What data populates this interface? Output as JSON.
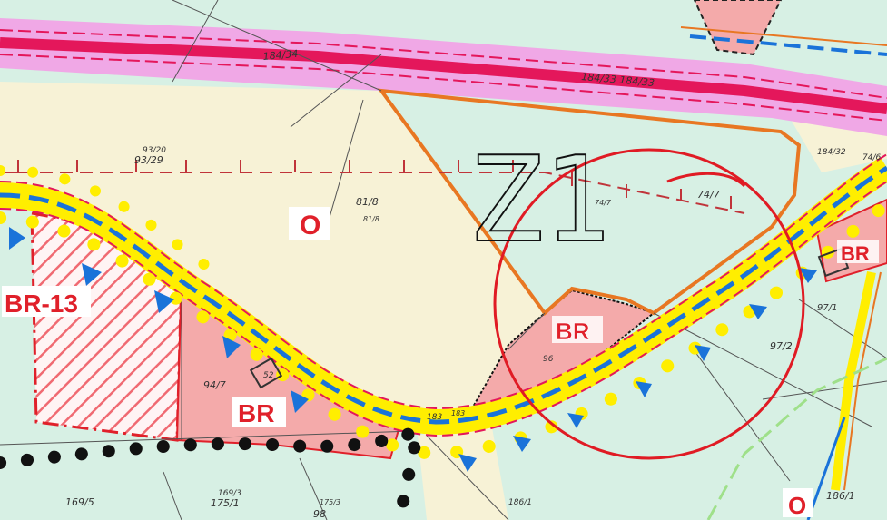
{
  "map": {
    "zones": {
      "o_main": "O",
      "br_13": "BR-13",
      "br_left": "BR",
      "br_center": "BR",
      "br_right": "BR",
      "o_bottom": "O"
    },
    "annotation": {
      "proposal_label": "Z1"
    },
    "parcels": [
      {
        "id": "p1",
        "label": "184/34"
      },
      {
        "id": "p2",
        "label": "184/33 184/33"
      },
      {
        "id": "p3",
        "label": "93/20"
      },
      {
        "id": "p4",
        "label": "93/29"
      },
      {
        "id": "p5",
        "label": "81/8"
      },
      {
        "id": "p6",
        "label": "81/8"
      },
      {
        "id": "p7",
        "label": "74/7"
      },
      {
        "id": "p8",
        "label": "74/7"
      },
      {
        "id": "p9",
        "label": "184/32"
      },
      {
        "id": "p10",
        "label": "74/6"
      },
      {
        "id": "p11",
        "label": "97/1"
      },
      {
        "id": "p12",
        "label": "97/2"
      },
      {
        "id": "p13",
        "label": "96"
      },
      {
        "id": "p14",
        "label": "94/7"
      },
      {
        "id": "p15",
        "label": "52"
      },
      {
        "id": "p16",
        "label": "183"
      },
      {
        "id": "p17",
        "label": "183"
      },
      {
        "id": "p18",
        "label": "169/5"
      },
      {
        "id": "p19",
        "label": "169/3"
      },
      {
        "id": "p20",
        "label": "175/1"
      },
      {
        "id": "p21",
        "label": "175/3"
      },
      {
        "id": "p22",
        "label": "98"
      },
      {
        "id": "p23",
        "label": "186/1"
      },
      {
        "id": "p24",
        "label": "186/1"
      }
    ],
    "colors": {
      "background": "#d7f0e4",
      "arable": "#f7f2d6",
      "road_band": "#f0a8e6",
      "road_line": "#e4175b",
      "road_yellow": "#ffee00",
      "road_blue": "#1a73d9",
      "zone_pink": "#f4aaaa",
      "zone_red": "#e0202a",
      "orange": "#e87722",
      "circle_red": "#e01b24"
    }
  }
}
